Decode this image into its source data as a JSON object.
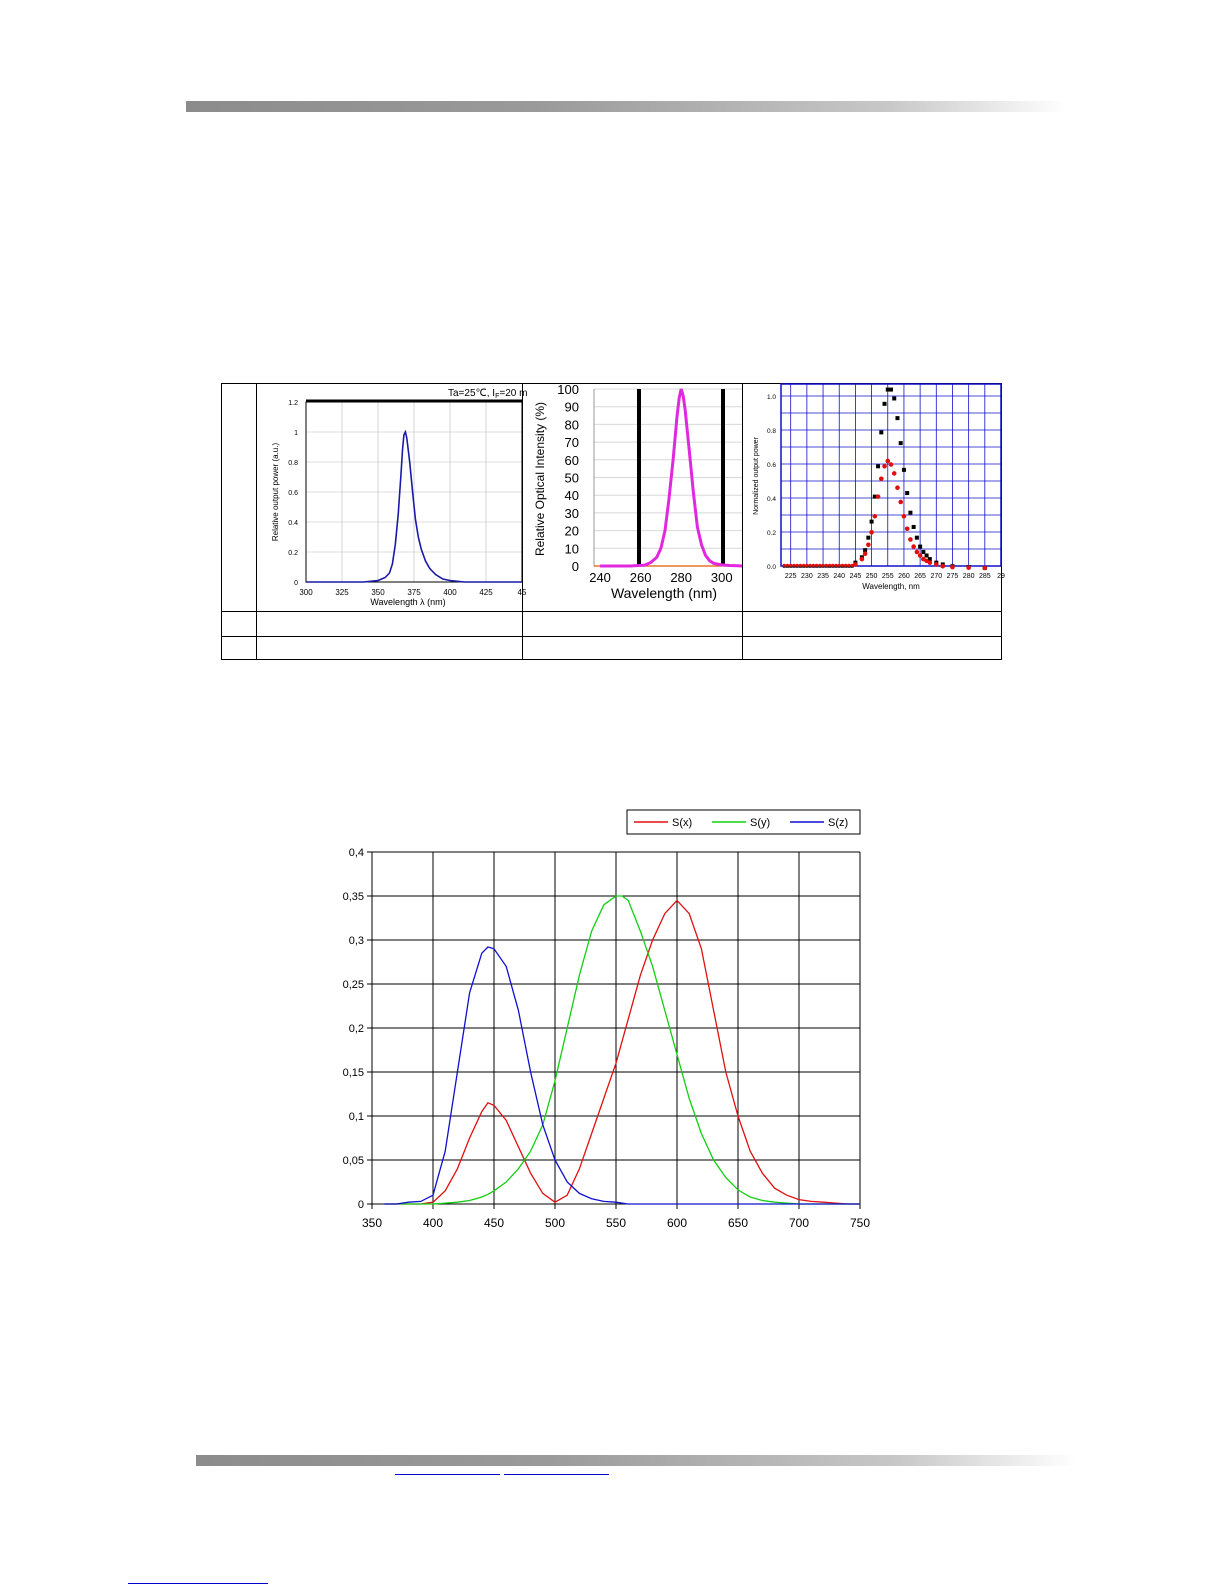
{
  "charts": {
    "c1": {
      "note": "Ta=25℃, I",
      "note_sub": "F",
      "note_tail": "=20 m",
      "ylabel": "Relative output power (a.u.)",
      "xlabel": "Wavelength  λ  (nm)",
      "xticks": [
        "300",
        "325",
        "350",
        "375",
        "400",
        "425",
        "45"
      ],
      "yticks": [
        "0",
        "0.2",
        "0.4",
        "0.6",
        "0.8",
        "1",
        "1.2"
      ]
    },
    "c2": {
      "ylabel": "Relative Optical Intensity  (%)",
      "xlabel": "Wavelength (nm)",
      "xticks": [
        "240",
        "260",
        "280",
        "300"
      ],
      "yticks": [
        "0",
        "10",
        "20",
        "30",
        "40",
        "50",
        "60",
        "70",
        "80",
        "90",
        "100"
      ]
    },
    "c3": {
      "ylabel": "Normalized output power",
      "xlabel": "Wavelength, nm",
      "xticks": [
        "225",
        "230",
        "235",
        "240",
        "245",
        "250",
        "255",
        "260",
        "265",
        "270",
        "275",
        "280",
        "285",
        "29"
      ],
      "yticks": [
        "0.0",
        "0.2",
        "0.4",
        "0.6",
        "0.8",
        "1.0"
      ]
    }
  },
  "chart_data": [
    {
      "type": "line",
      "xlim": [
        300,
        450
      ],
      "ylim": [
        0,
        1.2
      ],
      "series": [
        {
          "color": "#1a1aa8",
          "x": [
            300,
            340,
            350,
            355,
            358,
            360,
            362,
            364,
            366,
            367,
            368,
            369,
            370,
            372,
            374,
            376,
            378,
            380,
            383,
            386,
            390,
            395,
            400,
            410,
            420,
            430,
            440,
            450
          ],
          "y": [
            0.0,
            0.0,
            0.01,
            0.03,
            0.06,
            0.12,
            0.25,
            0.45,
            0.72,
            0.88,
            0.98,
            1.0,
            0.96,
            0.8,
            0.6,
            0.42,
            0.3,
            0.22,
            0.14,
            0.09,
            0.05,
            0.02,
            0.01,
            0.0,
            0.0,
            0.0,
            0.0,
            0.0
          ]
        }
      ]
    },
    {
      "type": "line",
      "xlim": [
        237,
        310
      ],
      "ylim": [
        0,
        100
      ],
      "series": [
        {
          "color": "#e028e0",
          "x": [
            240,
            255,
            262,
            265,
            268,
            270,
            272,
            274,
            276,
            278,
            279,
            280,
            281,
            282,
            284,
            286,
            288,
            290,
            292,
            294,
            296,
            300,
            304,
            308,
            310
          ],
          "y": [
            0,
            0,
            0.5,
            2,
            5,
            10,
            20,
            38,
            60,
            85,
            95,
            100,
            96,
            88,
            65,
            42,
            22,
            12,
            6,
            3,
            1.5,
            0.6,
            0.3,
            0.1,
            0
          ]
        }
      ]
    },
    {
      "type": "scatter",
      "xlim": [
        222,
        290
      ],
      "ylim": [
        0,
        1.02
      ],
      "series": [
        {
          "color": "#000000",
          "x": [
            245,
            247,
            248,
            249,
            250,
            251,
            252,
            253,
            254,
            255,
            256,
            257,
            258,
            259,
            260,
            261,
            262,
            263,
            264,
            265,
            266,
            267,
            268,
            270,
            272,
            275,
            280,
            285
          ],
          "y": [
            0.03,
            0.06,
            0.1,
            0.17,
            0.26,
            0.4,
            0.57,
            0.76,
            0.92,
            1.0,
            1.0,
            0.95,
            0.84,
            0.7,
            0.55,
            0.42,
            0.31,
            0.23,
            0.17,
            0.12,
            0.09,
            0.07,
            0.05,
            0.03,
            0.02,
            0.01,
            0.005,
            0.0
          ]
        },
        {
          "color": "#e01010",
          "x": [
            245,
            247,
            248,
            249,
            250,
            251,
            252,
            253,
            254,
            255,
            256,
            257,
            258,
            259,
            260,
            261,
            262,
            263,
            264,
            265,
            266,
            267,
            268,
            270,
            272,
            275,
            280,
            285
          ],
          "y": [
            0.02,
            0.05,
            0.08,
            0.13,
            0.2,
            0.29,
            0.4,
            0.5,
            0.57,
            0.6,
            0.58,
            0.53,
            0.45,
            0.37,
            0.29,
            0.22,
            0.16,
            0.12,
            0.09,
            0.07,
            0.05,
            0.04,
            0.03,
            0.02,
            0.01,
            0.005,
            0.002,
            0.0
          ]
        }
      ]
    },
    {
      "type": "line",
      "xlim": [
        350,
        750
      ],
      "ylim": [
        0,
        0.4
      ],
      "xticks": [
        "350",
        "400",
        "450",
        "500",
        "550",
        "600",
        "650",
        "700",
        "750"
      ],
      "yticks": [
        "0",
        "0,05",
        "0,1",
        "0,15",
        "0,2",
        "0,25",
        "0,3",
        "0,35",
        "0,4"
      ],
      "x": [
        360,
        370,
        380,
        390,
        400,
        410,
        420,
        430,
        440,
        445,
        450,
        460,
        470,
        480,
        490,
        500,
        510,
        520,
        530,
        540,
        550,
        555,
        560,
        570,
        580,
        590,
        600,
        610,
        620,
        630,
        640,
        650,
        660,
        670,
        680,
        690,
        700,
        710,
        720,
        730,
        740,
        750
      ],
      "series": [
        {
          "name": "S(x)",
          "color": "#e01010",
          "values": [
            0.0,
            0.0,
            0.0,
            0.0,
            0.002,
            0.015,
            0.04,
            0.075,
            0.105,
            0.115,
            0.112,
            0.095,
            0.065,
            0.035,
            0.012,
            0.002,
            0.01,
            0.04,
            0.08,
            0.12,
            0.16,
            0.185,
            0.21,
            0.26,
            0.3,
            0.33,
            0.345,
            0.33,
            0.29,
            0.22,
            0.15,
            0.1,
            0.06,
            0.035,
            0.018,
            0.01,
            0.005,
            0.003,
            0.002,
            0.001,
            0.0,
            0.0
          ]
        },
        {
          "name": "S(y)",
          "color": "#10d010",
          "values": [
            0.0,
            0.0,
            0.0,
            0.0,
            0.0,
            0.001,
            0.002,
            0.004,
            0.008,
            0.011,
            0.015,
            0.025,
            0.04,
            0.06,
            0.09,
            0.14,
            0.2,
            0.26,
            0.31,
            0.34,
            0.35,
            0.35,
            0.345,
            0.31,
            0.27,
            0.22,
            0.17,
            0.12,
            0.08,
            0.05,
            0.03,
            0.016,
            0.008,
            0.004,
            0.002,
            0.001,
            0.0,
            0.0,
            0.0,
            0.0,
            0.0,
            0.0
          ]
        },
        {
          "name": "S(z)",
          "color": "#1010d0",
          "values": [
            0.0,
            0.0,
            0.002,
            0.003,
            0.01,
            0.06,
            0.15,
            0.24,
            0.285,
            0.292,
            0.29,
            0.27,
            0.22,
            0.15,
            0.09,
            0.05,
            0.025,
            0.012,
            0.006,
            0.003,
            0.002,
            0.001,
            0.0,
            0.0,
            0.0,
            0.0,
            0.0,
            0.0,
            0.0,
            0.0,
            0.0,
            0.0,
            0.0,
            0.0,
            0.0,
            0.0,
            0.0,
            0.0,
            0.0,
            0.0,
            0.0,
            0.0
          ]
        }
      ]
    }
  ]
}
